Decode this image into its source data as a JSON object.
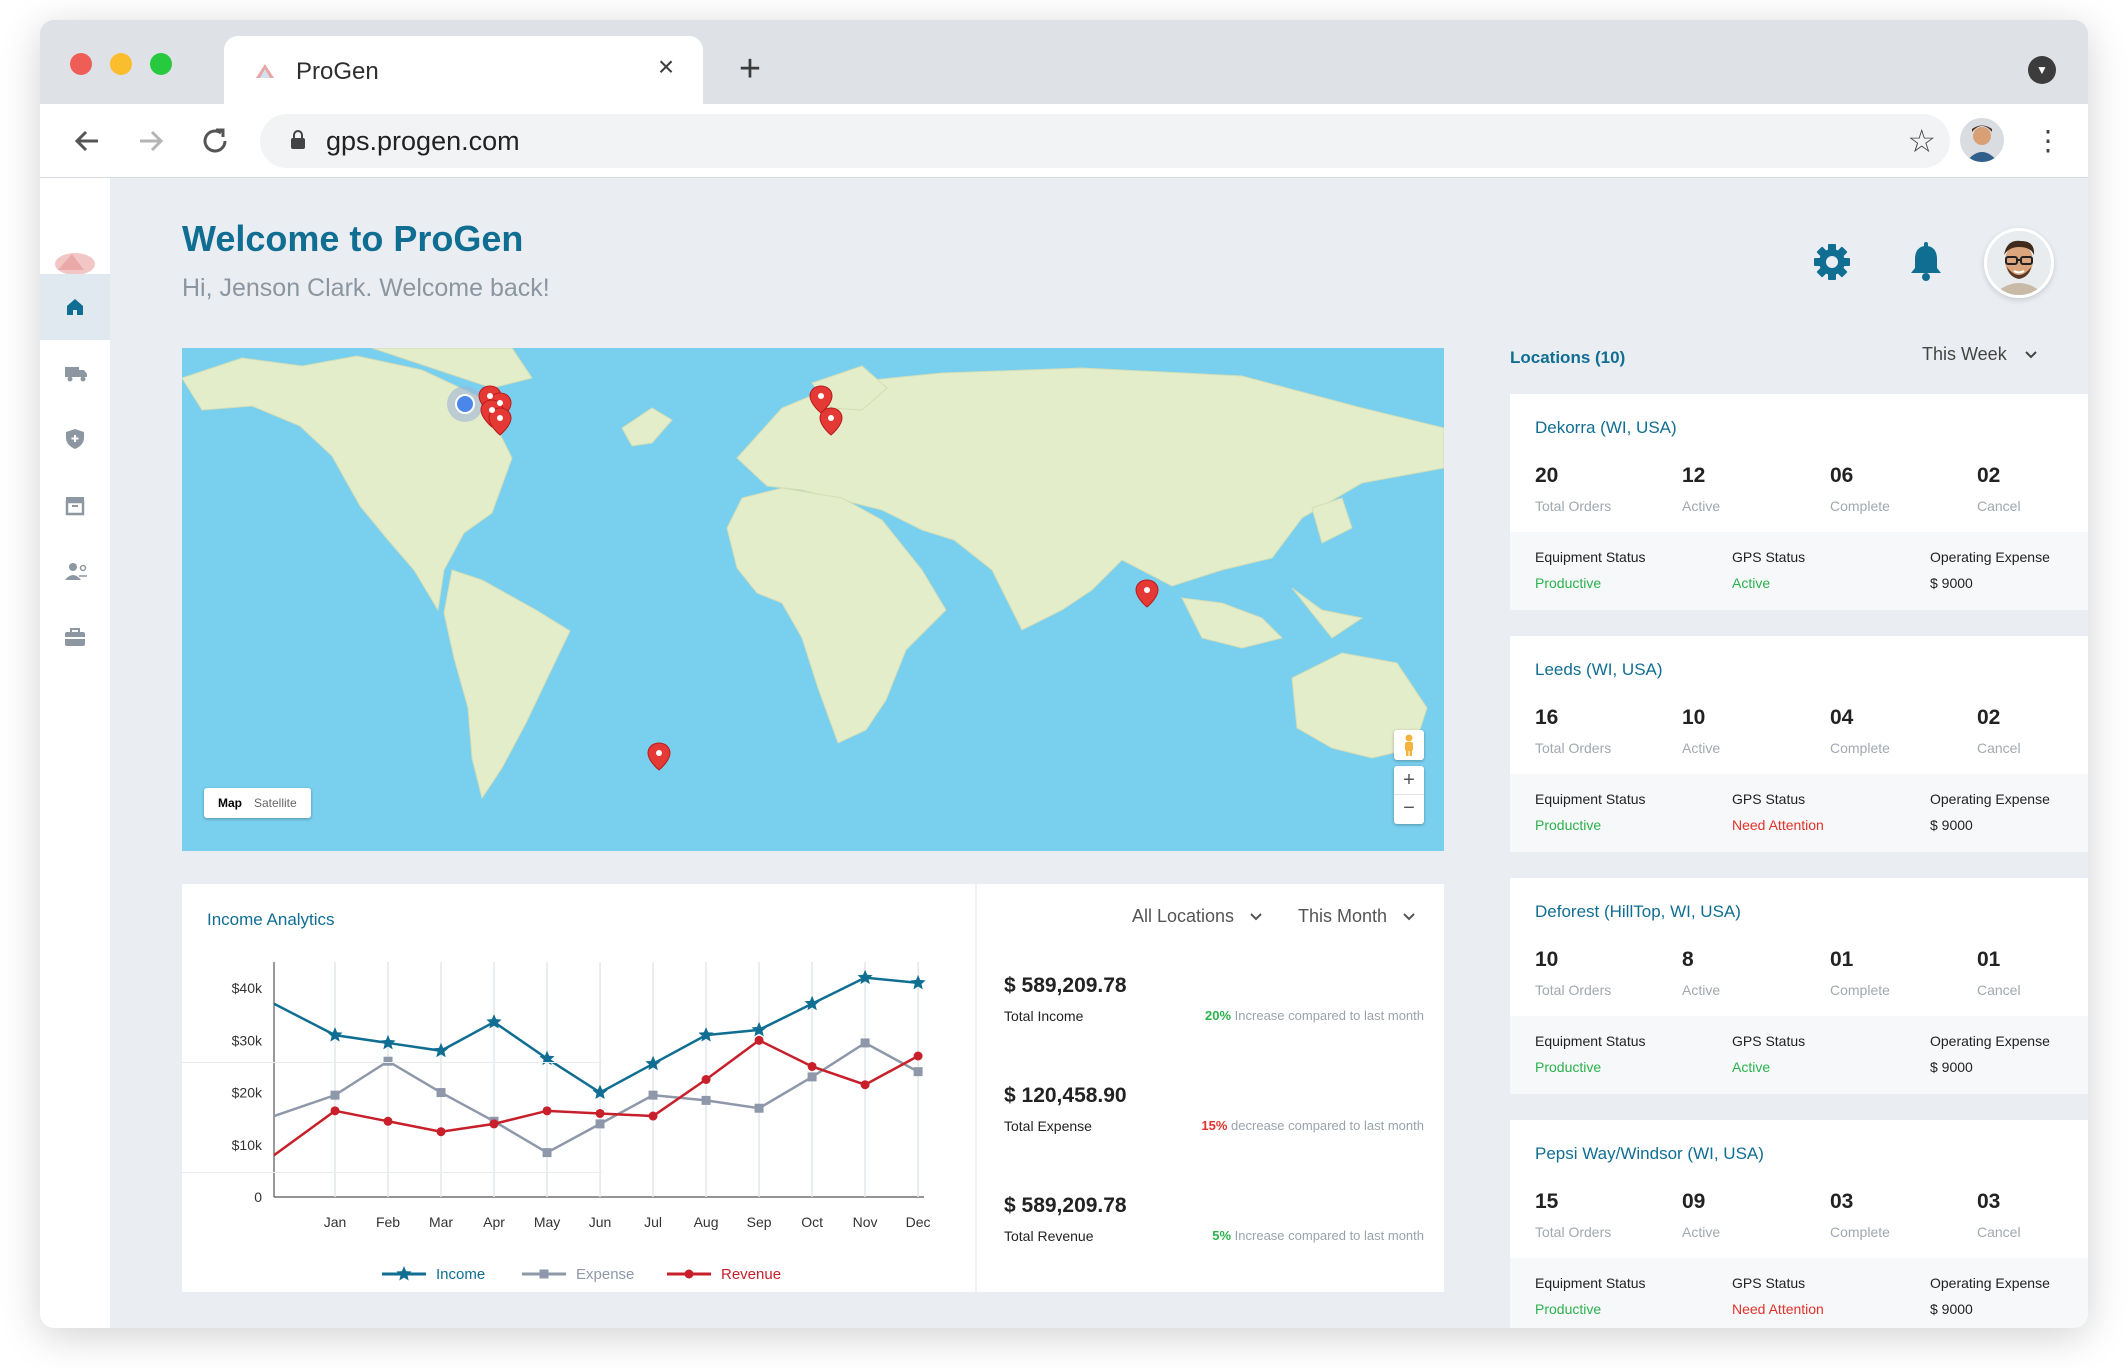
{
  "browser": {
    "tab_title": "ProGen",
    "url": "gps.progen.com",
    "traffic_lights": [
      "#ee5e56",
      "#f9bd2e",
      "#27c93f"
    ]
  },
  "header": {
    "title": "Welcome to ProGen",
    "subtitle": "Hi, Jenson Clark. Welcome back!"
  },
  "sidebar": {
    "items": [
      {
        "name": "home",
        "icon": "home-icon",
        "active": true
      },
      {
        "name": "truck",
        "icon": "truck-icon",
        "active": false
      },
      {
        "name": "shield",
        "icon": "shield-icon",
        "active": false
      },
      {
        "name": "archive",
        "icon": "archive-icon",
        "active": false
      },
      {
        "name": "users",
        "icon": "users-icon",
        "active": false
      },
      {
        "name": "briefcase",
        "icon": "briefcase-icon",
        "active": false
      }
    ]
  },
  "map": {
    "type_map": "Map",
    "type_satellite": "Satellite",
    "zoom_in": "+",
    "zoom_out": "−"
  },
  "analytics": {
    "title": "Income Analytics",
    "filter_location": "All Locations",
    "filter_period": "This Month",
    "summaries": [
      {
        "amount": "$ 589,209.78",
        "label": "Total Income",
        "percent": "20%",
        "note": " Increase compared to last month",
        "trend": "up"
      },
      {
        "amount": "$ 120,458.90",
        "label": "Total Expense",
        "percent": "15%",
        "note": " decrease compared to last month",
        "trend": "down"
      },
      {
        "amount": "$ 589,209.78",
        "label": "Total Revenue",
        "percent": "5%",
        "note": " Increase compared to last month",
        "trend": "up"
      }
    ]
  },
  "chart_data": {
    "type": "line",
    "categories": [
      "Jan",
      "Feb",
      "Mar",
      "Apr",
      "May",
      "Jun",
      "Jul",
      "Aug",
      "Sep",
      "Oct",
      "Nov",
      "Dec"
    ],
    "y_ticks": [
      "0",
      "$10k",
      "$20k",
      "$30k",
      "$40k"
    ],
    "ylim": [
      0,
      45000
    ],
    "series": [
      {
        "name": "Income",
        "color": "#106e92",
        "marker": "star",
        "start": 37000,
        "values": [
          31000,
          29500,
          28000,
          33500,
          26500,
          20000,
          25500,
          31000,
          32000,
          37000,
          42000,
          41000
        ]
      },
      {
        "name": "Expense",
        "color": "#8e98aa",
        "marker": "square",
        "start": 15500,
        "values": [
          19500,
          26000,
          20000,
          14500,
          8500,
          14000,
          19500,
          18500,
          17000,
          23000,
          29500,
          24000
        ]
      },
      {
        "name": "Revenue",
        "color": "#c7202b",
        "marker": "circle",
        "start": 8000,
        "values": [
          16500,
          14500,
          12500,
          14000,
          16500,
          16000,
          15500,
          22500,
          30000,
          25000,
          21500,
          27000
        ]
      }
    ]
  },
  "locations": {
    "title": "Locations (10)",
    "period": "This Week",
    "stat_labels": [
      "Total Orders",
      "Active",
      "Complete",
      "Cancel"
    ],
    "foot_labels": [
      "Equipment Status",
      "GPS Status",
      "Operating Expense"
    ],
    "items": [
      {
        "name": "Dekorra (WI, USA)",
        "stats": [
          "20",
          "12",
          "06",
          "02"
        ],
        "equipment": "Productive",
        "gps": "Active",
        "expense": "$ 9000"
      },
      {
        "name": "Leeds (WI, USA)",
        "stats": [
          "16",
          "10",
          "04",
          "02"
        ],
        "equipment": "Productive",
        "gps": "Need Attention",
        "expense": "$ 9000"
      },
      {
        "name": "Deforest (HillTop, WI, USA)",
        "stats": [
          "10",
          "8",
          "01",
          "01"
        ],
        "equipment": "Productive",
        "gps": "Active",
        "expense": "$ 9000"
      },
      {
        "name": "Pepsi Way/Windsor (WI, USA)",
        "stats": [
          "15",
          "09",
          "03",
          "03"
        ],
        "equipment": "Productive",
        "gps": "Need Attention",
        "expense": "$ 9000"
      }
    ]
  },
  "colors": {
    "brand": "#106e92",
    "positive": "#2bb24c",
    "negative": "#e2312b"
  }
}
